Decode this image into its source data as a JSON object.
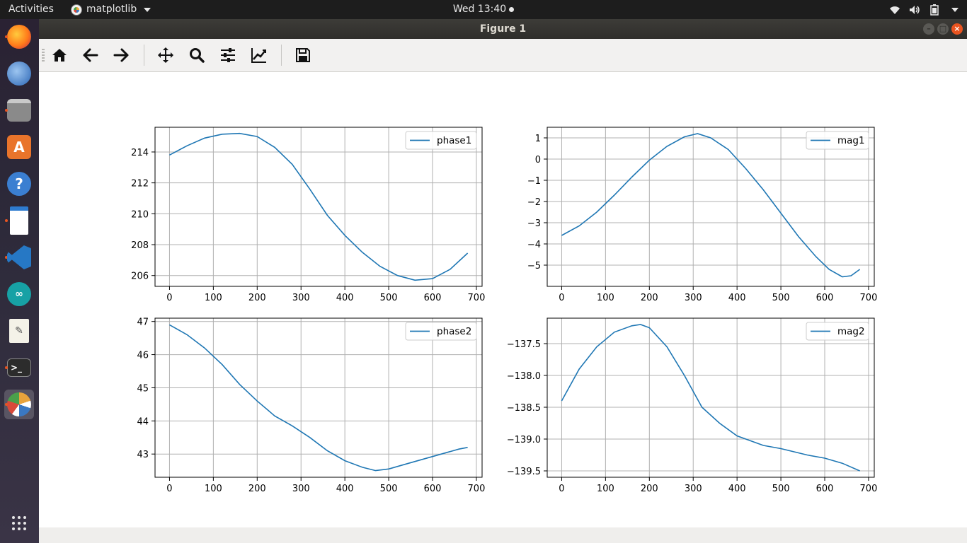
{
  "topbar": {
    "activities": "Activities",
    "app_name": "matplotlib",
    "clock": "Wed 13:40",
    "tray_icons": [
      "wifi-icon",
      "volume-icon",
      "battery-icon",
      "power-menu-icon"
    ]
  },
  "dock": {
    "items": [
      {
        "name": "firefox",
        "running": true
      },
      {
        "name": "thunderbird",
        "running": false
      },
      {
        "name": "files",
        "running": true
      },
      {
        "name": "software-center",
        "running": false
      },
      {
        "name": "help",
        "running": false
      },
      {
        "name": "libreoffice-impress",
        "running": true
      },
      {
        "name": "vscode",
        "running": true
      },
      {
        "name": "arduino",
        "running": false
      },
      {
        "name": "text-editor",
        "running": false
      },
      {
        "name": "terminal",
        "running": true
      },
      {
        "name": "matplotlib",
        "running": true
      }
    ],
    "apps_grid_icon": "show-applications-icon"
  },
  "window": {
    "title": "Figure 1",
    "toolbar": [
      "home-icon",
      "back-icon",
      "forward-icon",
      "pan-icon",
      "zoom-icon",
      "subplots-config-icon",
      "edit-axes-icon",
      "save-icon"
    ]
  },
  "chart_data": [
    {
      "type": "line",
      "series": [
        {
          "name": "phase1",
          "x": [
            0,
            40,
            80,
            120,
            160,
            200,
            240,
            280,
            320,
            360,
            400,
            440,
            480,
            520,
            560,
            600,
            640,
            680
          ],
          "y": [
            213.8,
            214.4,
            214.9,
            215.15,
            215.2,
            215.0,
            214.3,
            213.2,
            211.6,
            209.9,
            208.6,
            207.5,
            206.6,
            206.0,
            205.7,
            205.8,
            206.4,
            207.45
          ]
        }
      ],
      "xticks": [
        0,
        100,
        200,
        300,
        400,
        500,
        600,
        700
      ],
      "yticks": [
        206,
        208,
        210,
        212,
        214
      ],
      "xlim": [
        -33,
        713
      ],
      "ylim": [
        205.3,
        215.6
      ],
      "legend": "upper right",
      "grid": true
    },
    {
      "type": "line",
      "series": [
        {
          "name": "mag1",
          "x": [
            0,
            40,
            80,
            120,
            160,
            200,
            240,
            280,
            310,
            340,
            380,
            420,
            460,
            500,
            540,
            580,
            610,
            640,
            660,
            680
          ],
          "y": [
            -3.6,
            -3.15,
            -2.5,
            -1.7,
            -0.85,
            -0.05,
            0.6,
            1.05,
            1.2,
            1.0,
            0.45,
            -0.45,
            -1.45,
            -2.55,
            -3.65,
            -4.6,
            -5.2,
            -5.55,
            -5.5,
            -5.2
          ]
        }
      ],
      "xticks": [
        0,
        100,
        200,
        300,
        400,
        500,
        600,
        700
      ],
      "yticks": [
        -5,
        -4,
        -3,
        -2,
        -1,
        0,
        1
      ],
      "xlim": [
        -33,
        713
      ],
      "ylim": [
        -6,
        1.5
      ],
      "legend": "upper right",
      "grid": true
    },
    {
      "type": "line",
      "series": [
        {
          "name": "phase2",
          "x": [
            0,
            40,
            80,
            120,
            160,
            200,
            240,
            280,
            320,
            360,
            400,
            440,
            470,
            500,
            540,
            580,
            620,
            660,
            680
          ],
          "y": [
            46.9,
            46.6,
            46.2,
            45.7,
            45.1,
            44.6,
            44.15,
            43.85,
            43.5,
            43.1,
            42.8,
            42.6,
            42.5,
            42.55,
            42.7,
            42.85,
            43.0,
            43.15,
            43.2
          ]
        }
      ],
      "xticks": [
        0,
        100,
        200,
        300,
        400,
        500,
        600,
        700
      ],
      "yticks": [
        43,
        44,
        45,
        46,
        47
      ],
      "xlim": [
        -33,
        713
      ],
      "ylim": [
        42.3,
        47.1
      ],
      "legend": "upper right",
      "grid": true
    },
    {
      "type": "line",
      "series": [
        {
          "name": "mag2",
          "x": [
            0,
            40,
            80,
            120,
            160,
            180,
            200,
            240,
            280,
            320,
            360,
            400,
            440,
            460,
            500,
            560,
            600,
            640,
            680
          ],
          "y": [
            -138.4,
            -137.9,
            -137.55,
            -137.32,
            -137.22,
            -137.2,
            -137.25,
            -137.55,
            -138.0,
            -138.5,
            -138.75,
            -138.95,
            -139.05,
            -139.1,
            -139.15,
            -139.25,
            -139.3,
            -139.38,
            -139.5
          ]
        }
      ],
      "xticks": [
        0,
        100,
        200,
        300,
        400,
        500,
        600,
        700
      ],
      "yticks": [
        -139.5,
        -139.0,
        -138.5,
        -138.0,
        -137.5
      ],
      "ytick_labels": [
        "−139.5",
        "−139.0",
        "−138.5",
        "−138.0",
        "−137.5"
      ],
      "xlim": [
        -33,
        713
      ],
      "ylim": [
        -139.6,
        -137.1
      ],
      "legend": "upper right",
      "grid": true
    }
  ],
  "colors": {
    "line": "#1f77b4",
    "grid": "#b0b0b0"
  }
}
